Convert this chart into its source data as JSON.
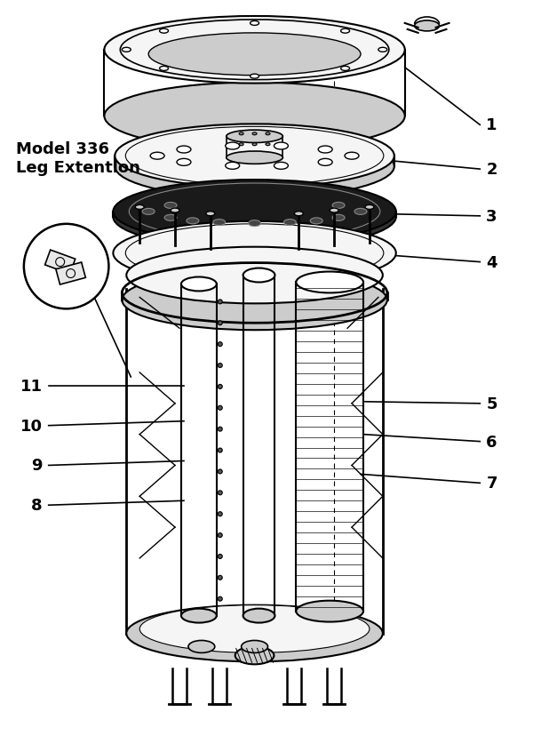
{
  "background_color": "#ffffff",
  "fig_width": 6.0,
  "fig_height": 8.29,
  "dpi": 100,
  "model_label": "Model 336\nLeg Extention",
  "line_color": "#000000",
  "text_color": "#000000",
  "label_font_size": 13,
  "model_font_size": 13
}
